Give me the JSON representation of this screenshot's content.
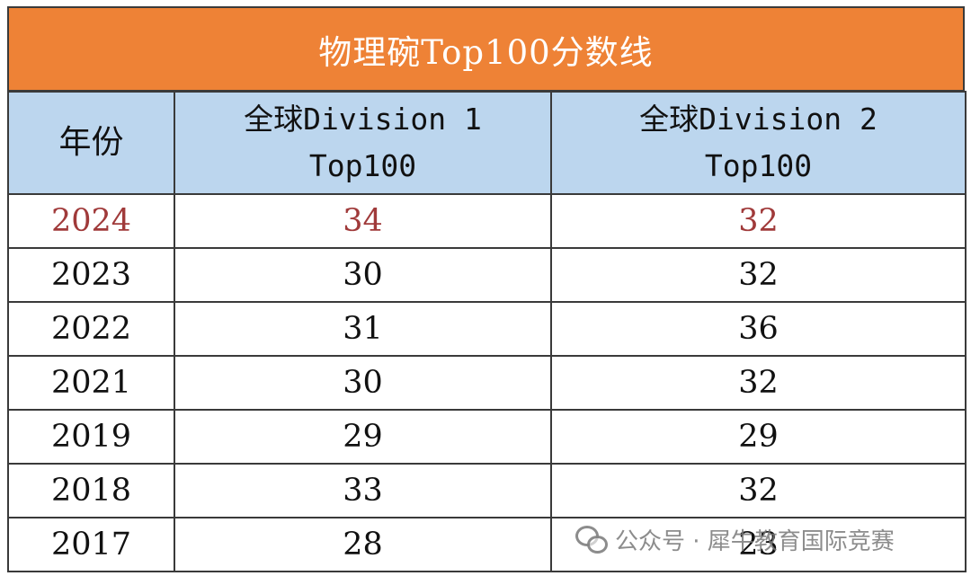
{
  "title": "物理碗Top100分数线",
  "table": {
    "headers": {
      "year": "年份",
      "division1_line1": "全球Division 1",
      "division1_line2": "Top100",
      "division2_line1": "全球Division 2",
      "division2_line2": "Top100"
    },
    "rows": [
      {
        "year": "2024",
        "d1": "34",
        "d2": "32"
      },
      {
        "year": "2023",
        "d1": "30",
        "d2": "32"
      },
      {
        "year": "2022",
        "d1": "31",
        "d2": "36"
      },
      {
        "year": "2021",
        "d1": "30",
        "d2": "32"
      },
      {
        "year": "2019",
        "d1": "29",
        "d2": "29"
      },
      {
        "year": "2018",
        "d1": "33",
        "d2": "32"
      },
      {
        "year": "2017",
        "d1": "28",
        "d2": "23"
      }
    ],
    "highlight_color": "#a03a3a"
  },
  "colors": {
    "title_bg": "#ee8236",
    "header_bg": "#bcd6ee"
  },
  "watermark": {
    "icon": "wechat-icon",
    "text": "公众号 · 犀牛教育国际竞赛"
  }
}
